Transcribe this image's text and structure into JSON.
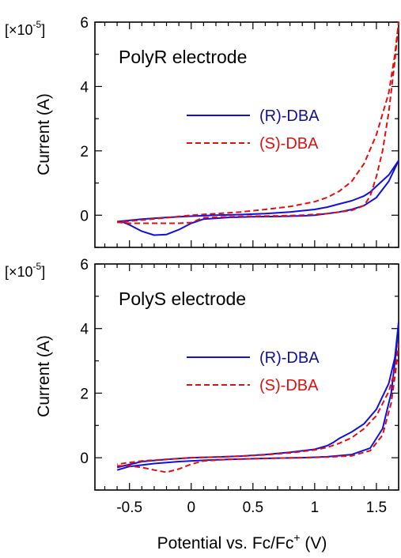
{
  "chart_data": [
    {
      "type": "line",
      "panel_label": "PolyR electrode",
      "ylabel": "Current (A)",
      "y_multiplier": "[×10⁻⁵]",
      "y_multiplier_base": "[×10",
      "y_multiplier_exp": "-5",
      "y_multiplier_close": "]",
      "xlim": [
        -0.78,
        1.68
      ],
      "ylim": [
        -1.0,
        6.0
      ],
      "yticks": [
        0,
        2,
        4,
        6
      ],
      "ytick_labels": [
        "0",
        "2",
        "4",
        "6"
      ],
      "legend": "upper-right",
      "series": [
        {
          "name": "(R)-DBA",
          "color": "#1010e0",
          "style": "solid",
          "points": [
            [
              -0.6,
              -0.2
            ],
            [
              -0.55,
              -0.22
            ],
            [
              -0.5,
              -0.3
            ],
            [
              -0.4,
              -0.5
            ],
            [
              -0.3,
              -0.62
            ],
            [
              -0.2,
              -0.6
            ],
            [
              -0.1,
              -0.45
            ],
            [
              0.0,
              -0.25
            ],
            [
              0.1,
              -0.12
            ],
            [
              0.3,
              -0.07
            ],
            [
              0.5,
              -0.05
            ],
            [
              0.7,
              -0.04
            ],
            [
              0.9,
              -0.02
            ],
            [
              1.0,
              0.0
            ],
            [
              1.1,
              0.05
            ],
            [
              1.2,
              0.1
            ],
            [
              1.3,
              0.18
            ],
            [
              1.4,
              0.3
            ],
            [
              1.5,
              0.55
            ],
            [
              1.6,
              1.05
            ],
            [
              1.68,
              1.7
            ],
            [
              1.6,
              1.25
            ],
            [
              1.5,
              0.9
            ],
            [
              1.45,
              0.72
            ],
            [
              1.4,
              0.6
            ],
            [
              1.3,
              0.45
            ],
            [
              1.2,
              0.35
            ],
            [
              1.1,
              0.25
            ],
            [
              1.0,
              0.18
            ],
            [
              0.8,
              0.1
            ],
            [
              0.6,
              0.05
            ],
            [
              0.4,
              0.02
            ],
            [
              0.2,
              0.0
            ],
            [
              0.0,
              -0.03
            ],
            [
              -0.2,
              -0.07
            ],
            [
              -0.4,
              -0.12
            ],
            [
              -0.6,
              -0.2
            ]
          ]
        },
        {
          "name": "(S)-DBA",
          "color": "#e01010",
          "style": "dashed",
          "points": [
            [
              -0.6,
              -0.22
            ],
            [
              -0.5,
              -0.25
            ],
            [
              -0.3,
              -0.25
            ],
            [
              -0.1,
              -0.25
            ],
            [
              0.0,
              -0.23
            ],
            [
              0.05,
              -0.15
            ],
            [
              0.1,
              -0.08
            ],
            [
              0.3,
              -0.05
            ],
            [
              0.5,
              -0.03
            ],
            [
              0.7,
              -0.02
            ],
            [
              0.9,
              0.0
            ],
            [
              1.1,
              0.05
            ],
            [
              1.3,
              0.15
            ],
            [
              1.4,
              0.3
            ],
            [
              1.45,
              0.6
            ],
            [
              1.5,
              1.2
            ],
            [
              1.55,
              2.0
            ],
            [
              1.6,
              3.2
            ],
            [
              1.65,
              4.8
            ],
            [
              1.68,
              6.0
            ],
            [
              1.65,
              5.0
            ],
            [
              1.6,
              3.8
            ],
            [
              1.5,
              2.5
            ],
            [
              1.4,
              1.6
            ],
            [
              1.3,
              1.05
            ],
            [
              1.2,
              0.75
            ],
            [
              1.1,
              0.55
            ],
            [
              1.0,
              0.42
            ],
            [
              0.8,
              0.27
            ],
            [
              0.6,
              0.18
            ],
            [
              0.4,
              0.1
            ],
            [
              0.2,
              0.05
            ],
            [
              0.0,
              0.0
            ],
            [
              -0.2,
              -0.08
            ],
            [
              -0.4,
              -0.15
            ],
            [
              -0.6,
              -0.22
            ]
          ]
        }
      ]
    },
    {
      "type": "line",
      "panel_label": "PolyS electrode",
      "ylabel": "Current (A)",
      "y_multiplier": "[×10⁻⁵]",
      "y_multiplier_base": "[×10",
      "y_multiplier_exp": "-5",
      "y_multiplier_close": "]",
      "xlabel_base": "Potential vs. Fc/Fc",
      "xlabel_sup": "+",
      "xlabel_unit": " (V)",
      "xlim": [
        -0.78,
        1.68
      ],
      "ylim": [
        -1.0,
        6.0
      ],
      "xticks": [
        -0.5,
        0,
        0.5,
        1,
        1.5
      ],
      "xtick_labels": [
        "-0.5",
        "0",
        "0.5",
        "1",
        "1.5"
      ],
      "yticks": [
        0,
        2,
        4,
        6
      ],
      "ytick_labels": [
        "0",
        "2",
        "4",
        "6"
      ],
      "legend": "upper-right",
      "series": [
        {
          "name": "(R)-DBA",
          "color": "#1010e0",
          "style": "solid",
          "points": [
            [
              -0.6,
              -0.38
            ],
            [
              -0.5,
              -0.27
            ],
            [
              -0.3,
              -0.18
            ],
            [
              -0.1,
              -0.12
            ],
            [
              0.1,
              -0.08
            ],
            [
              0.3,
              -0.05
            ],
            [
              0.5,
              -0.03
            ],
            [
              0.7,
              -0.01
            ],
            [
              0.9,
              0.0
            ],
            [
              1.1,
              0.03
            ],
            [
              1.3,
              0.1
            ],
            [
              1.45,
              0.3
            ],
            [
              1.55,
              0.9
            ],
            [
              1.62,
              2.0
            ],
            [
              1.66,
              3.3
            ],
            [
              1.68,
              4.2
            ],
            [
              1.65,
              3.1
            ],
            [
              1.6,
              2.3
            ],
            [
              1.5,
              1.5
            ],
            [
              1.4,
              1.05
            ],
            [
              1.3,
              0.8
            ],
            [
              1.2,
              0.6
            ],
            [
              1.15,
              0.47
            ],
            [
              1.1,
              0.37
            ],
            [
              1.0,
              0.26
            ],
            [
              0.8,
              0.17
            ],
            [
              0.6,
              0.1
            ],
            [
              0.4,
              0.05
            ],
            [
              0.2,
              0.02
            ],
            [
              0.0,
              0.0
            ],
            [
              -0.2,
              -0.05
            ],
            [
              -0.4,
              -0.12
            ],
            [
              -0.6,
              -0.3
            ]
          ]
        },
        {
          "name": "(S)-DBA",
          "color": "#e01010",
          "style": "dashed",
          "points": [
            [
              -0.6,
              -0.25
            ],
            [
              -0.5,
              -0.25
            ],
            [
              -0.4,
              -0.3
            ],
            [
              -0.3,
              -0.38
            ],
            [
              -0.2,
              -0.45
            ],
            [
              -0.1,
              -0.35
            ],
            [
              0.0,
              -0.2
            ],
            [
              0.1,
              -0.1
            ],
            [
              0.3,
              -0.05
            ],
            [
              0.5,
              -0.03
            ],
            [
              0.7,
              -0.01
            ],
            [
              0.9,
              0.0
            ],
            [
              1.1,
              0.02
            ],
            [
              1.3,
              0.06
            ],
            [
              1.45,
              0.22
            ],
            [
              1.55,
              0.7
            ],
            [
              1.62,
              1.7
            ],
            [
              1.66,
              2.8
            ],
            [
              1.68,
              3.5
            ],
            [
              1.65,
              2.7
            ],
            [
              1.6,
              2.05
            ],
            [
              1.5,
              1.3
            ],
            [
              1.4,
              0.9
            ],
            [
              1.3,
              0.62
            ],
            [
              1.2,
              0.45
            ],
            [
              1.1,
              0.32
            ],
            [
              1.0,
              0.24
            ],
            [
              0.8,
              0.15
            ],
            [
              0.6,
              0.09
            ],
            [
              0.4,
              0.05
            ],
            [
              0.2,
              0.02
            ],
            [
              0.0,
              0.0
            ],
            [
              -0.2,
              -0.05
            ],
            [
              -0.4,
              -0.1
            ],
            [
              -0.6,
              -0.2
            ]
          ]
        }
      ]
    }
  ]
}
